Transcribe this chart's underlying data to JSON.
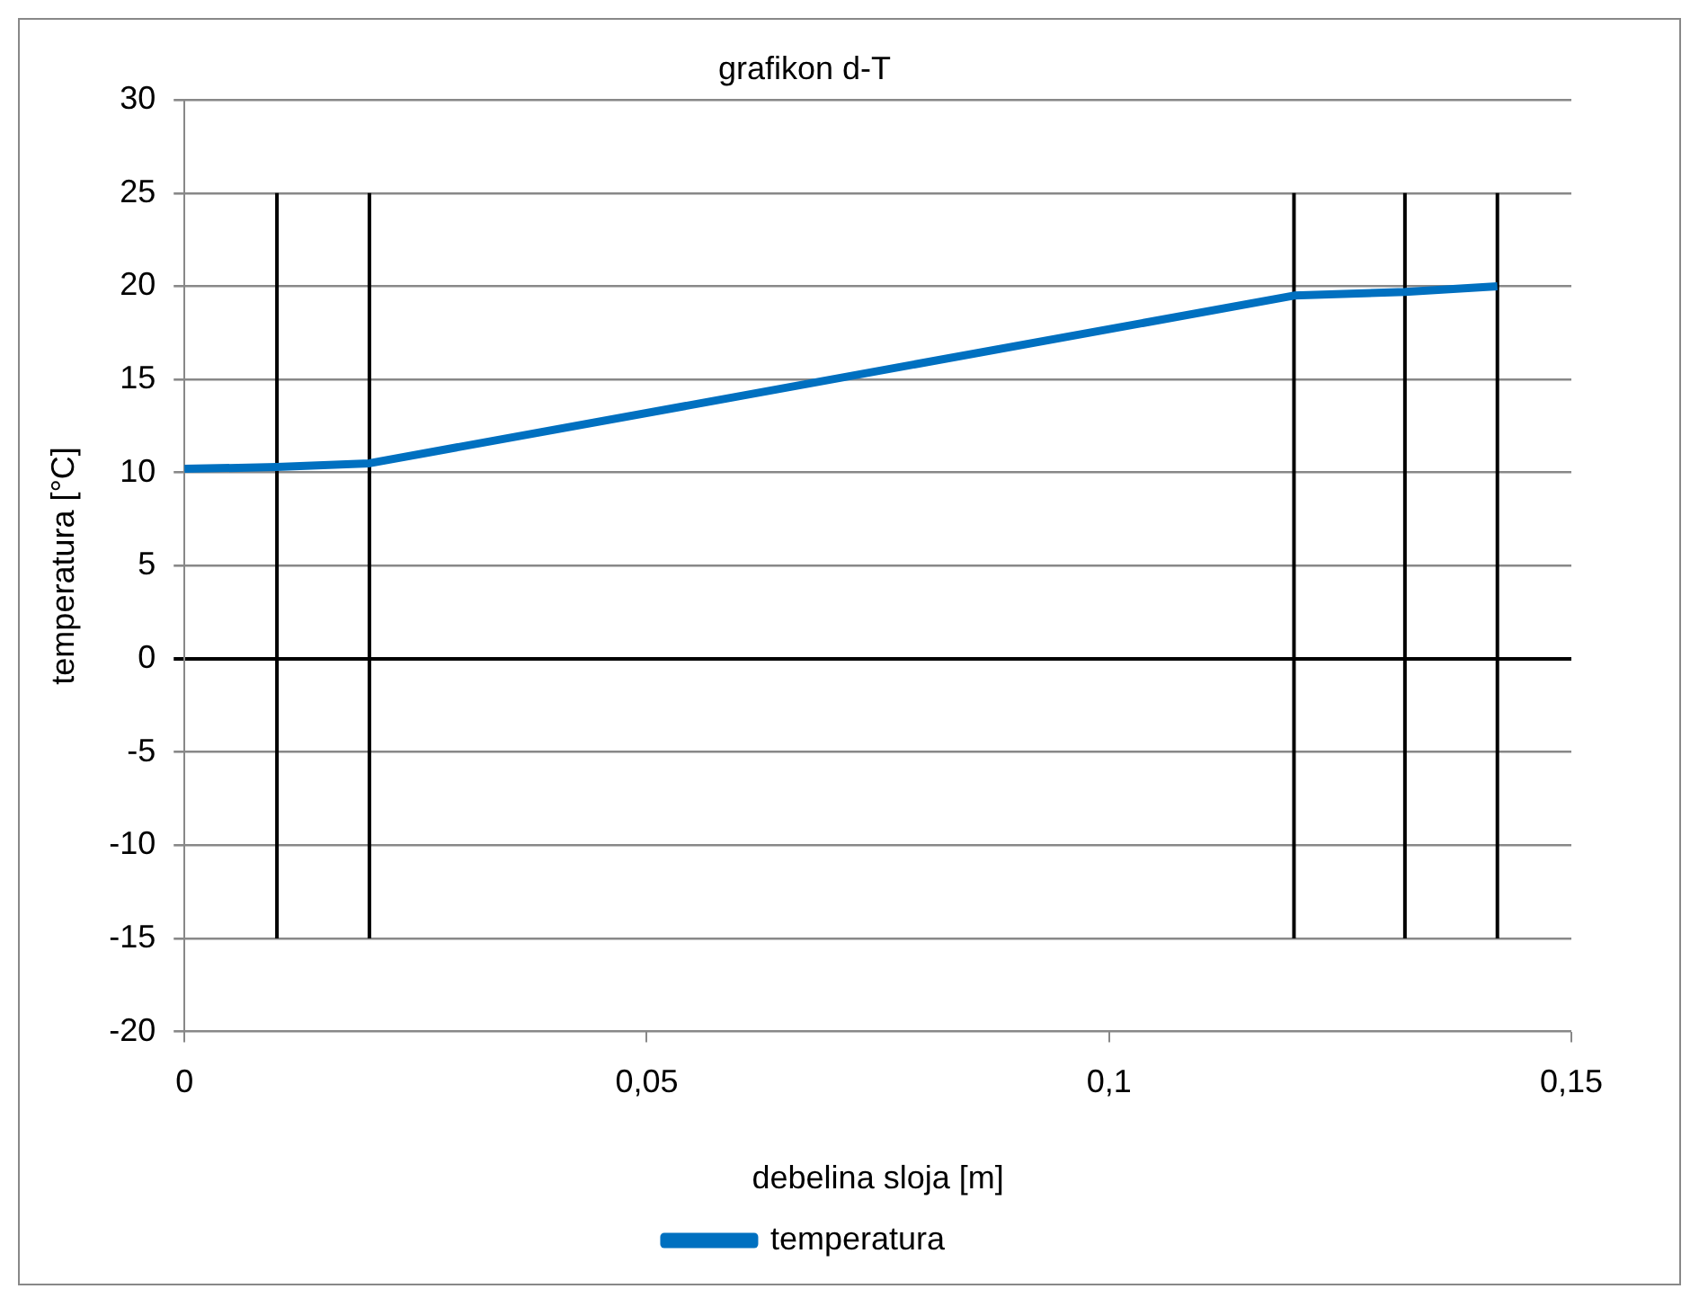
{
  "chart_data": {
    "type": "line",
    "title": "grafikon d-T",
    "xlabel": "debelina sloja [m]",
    "ylabel": "temperatura [°C]",
    "xlim": [
      0,
      0.15
    ],
    "xticks": [
      {
        "value": 0,
        "label": "0"
      },
      {
        "value": 0.05,
        "label": "0,05"
      },
      {
        "value": 0.1,
        "label": "0,1"
      },
      {
        "value": 0.15,
        "label": "0,15"
      }
    ],
    "ylim": [
      -20,
      30
    ],
    "yticks": [
      -20,
      -15,
      -10,
      -5,
      0,
      5,
      10,
      15,
      20,
      25,
      30
    ],
    "grid": "y",
    "legend": "bottom",
    "marker": "none",
    "line_style": "solid",
    "series": [
      {
        "name": "temperatura",
        "color": "#0070c0",
        "x": [
          0,
          0.01,
          0.02,
          0.12,
          0.132,
          0.142
        ],
        "values": [
          10.2,
          10.3,
          10.5,
          19.5,
          19.7,
          20
        ]
      },
      {
        "color": "#000000",
        "x": [
          0.01,
          0.01
        ],
        "values": [
          -15,
          25
        ]
      },
      {
        "color": "#000000",
        "x": [
          0.02,
          0.02
        ],
        "values": [
          -15,
          25
        ]
      },
      {
        "color": "#000000",
        "x": [
          0.12,
          0.12
        ],
        "values": [
          -15,
          25
        ]
      },
      {
        "color": "#000000",
        "x": [
          0.132,
          0.132
        ],
        "values": [
          -15,
          25
        ]
      },
      {
        "color": "#000000",
        "x": [
          0.142,
          0.142
        ],
        "values": [
          -15,
          25
        ]
      }
    ]
  }
}
